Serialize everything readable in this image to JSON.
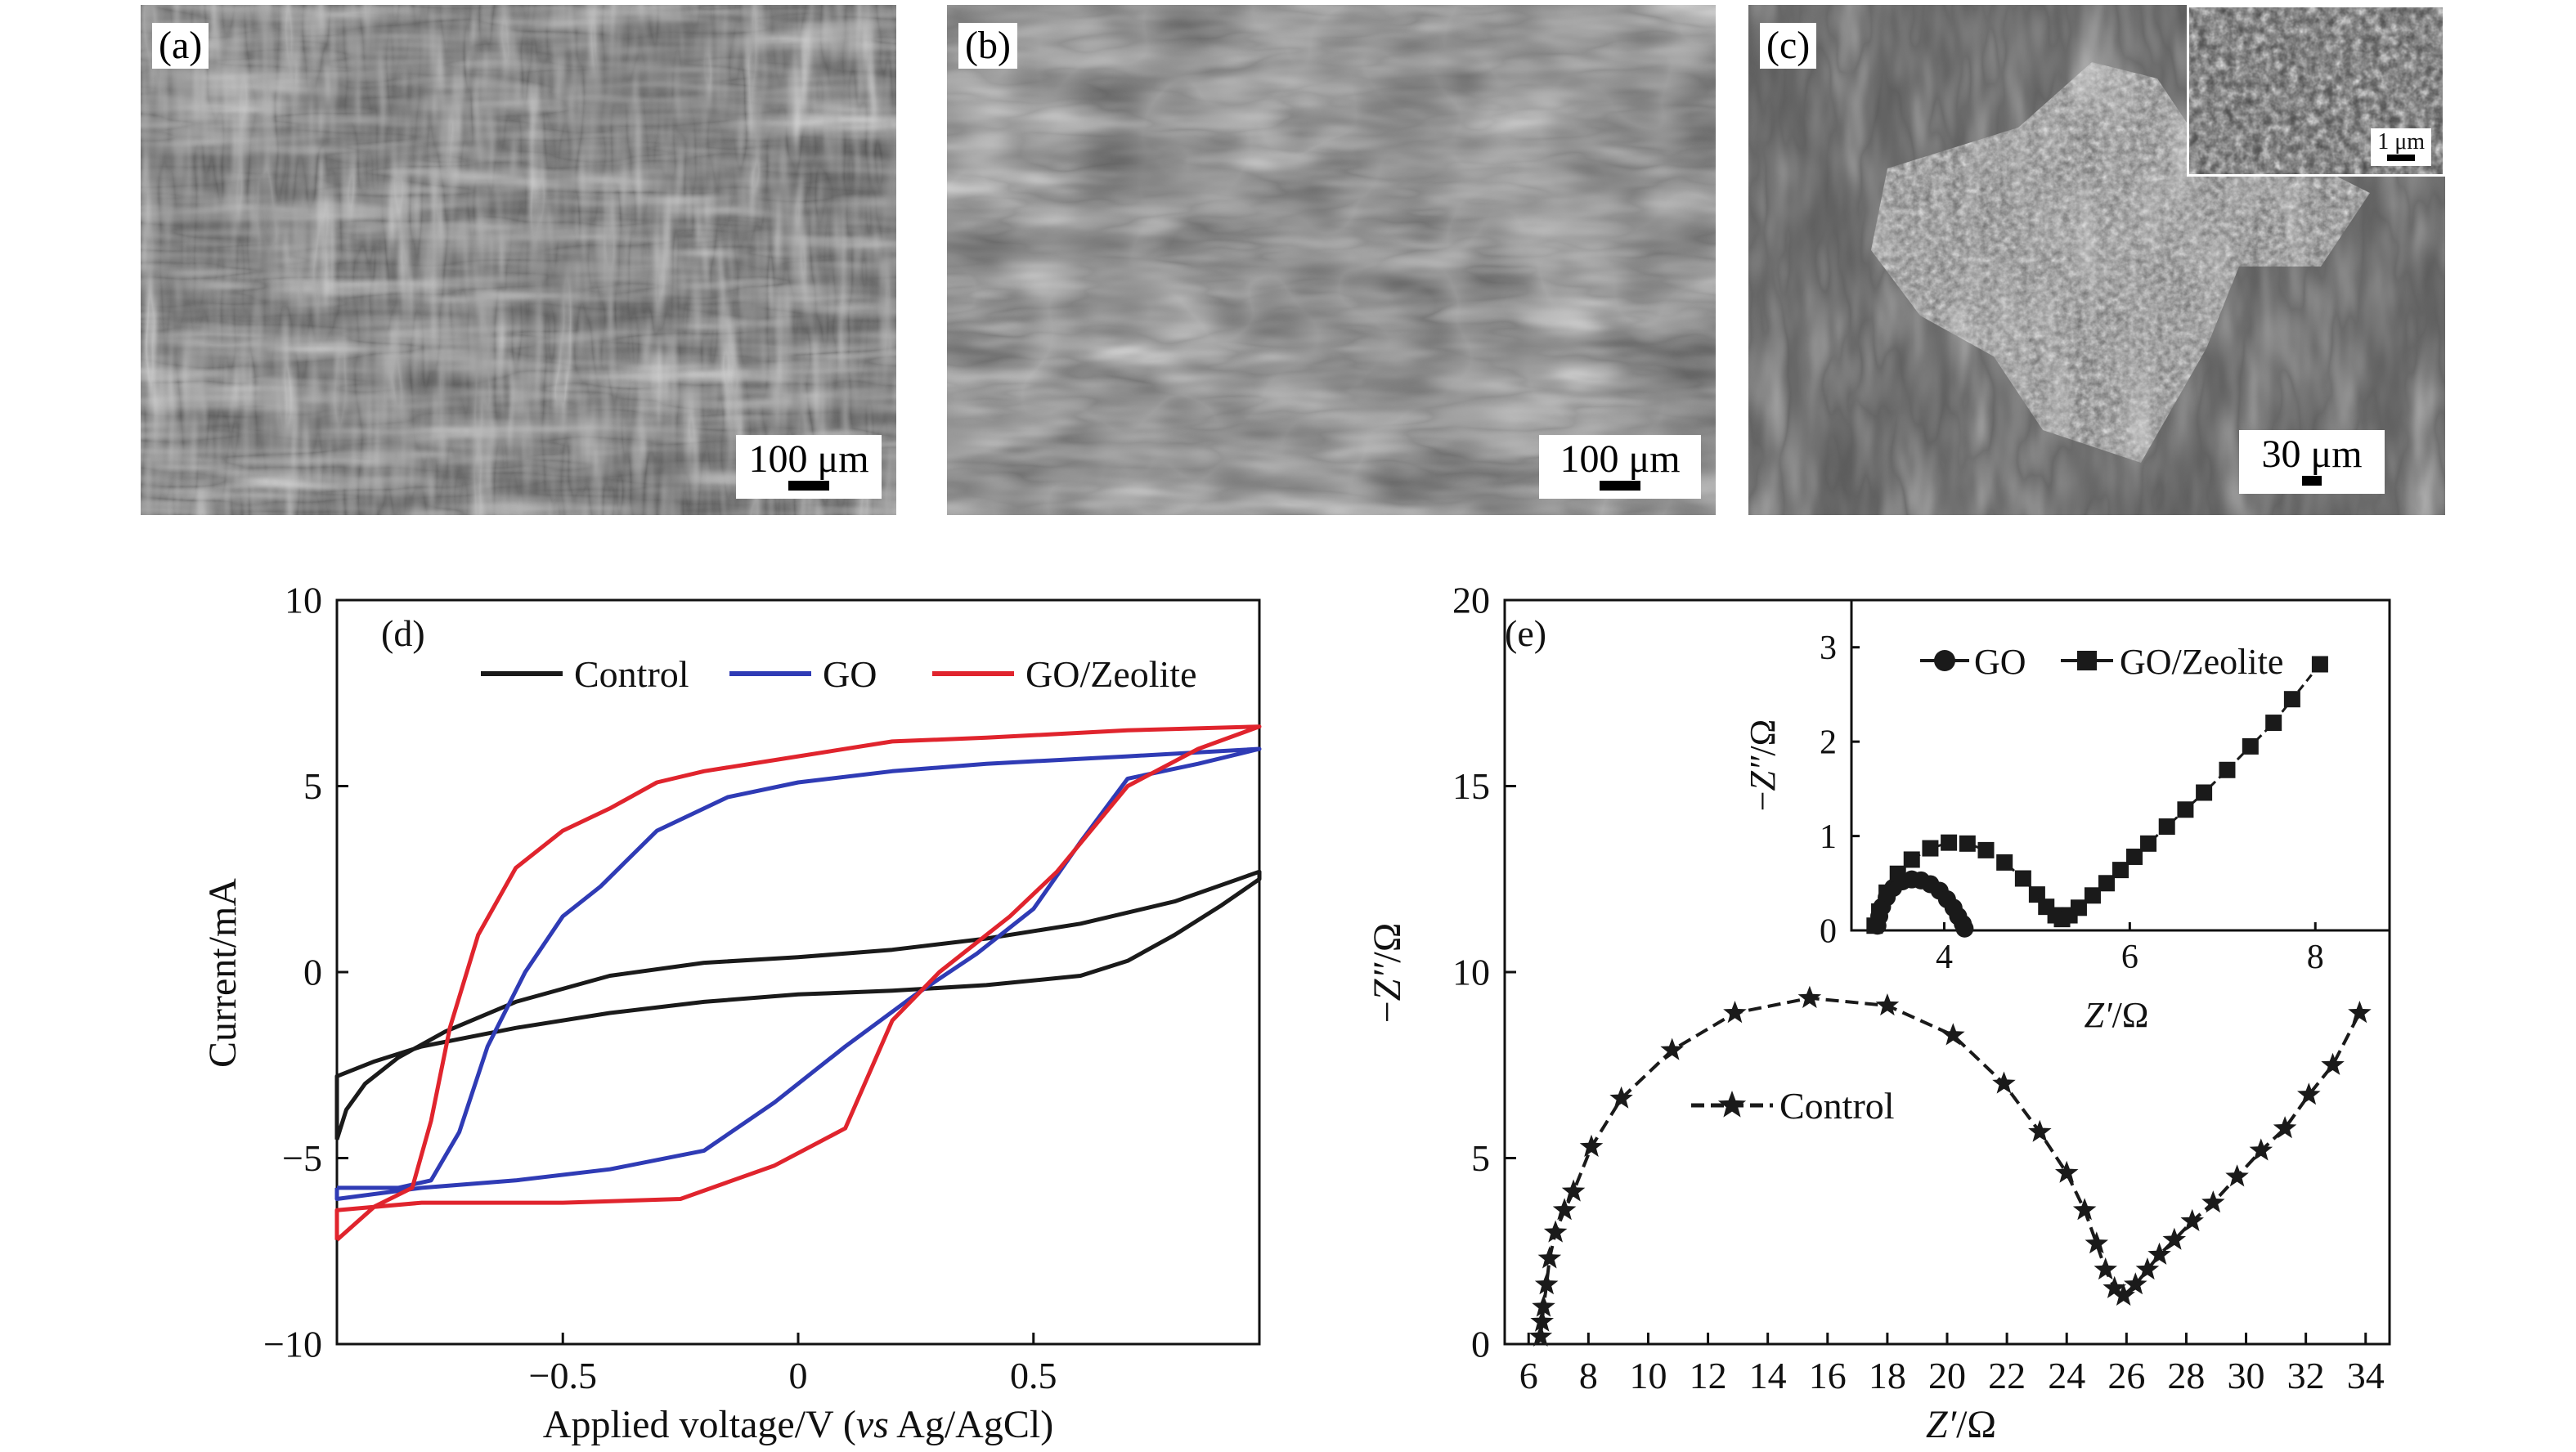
{
  "sem_panels": [
    {
      "tag": "(a)",
      "scale_label": "100 μm",
      "texture": "sem-fibers-sparse"
    },
    {
      "tag": "(b)",
      "scale_label": "100 μm",
      "texture": "sem-fibers-flakes"
    },
    {
      "tag": "(c)",
      "scale_label": "30 μm",
      "texture": "sem-fibers-particle",
      "inset": {
        "scale_label": "1 μm",
        "texture": "sem-nanoparticles"
      }
    }
  ],
  "chart_data": [
    {
      "type": "line",
      "tag": "(d)",
      "xlabel_prefix": "Applied voltage/V (",
      "xlabel_italic": "vs",
      "xlabel_suffix": " Ag/AgCl)",
      "ylabel": "Current/mA",
      "xlim": [
        -0.98,
        0.98
      ],
      "ylim": [
        -10,
        10
      ],
      "xticks": [
        -0.5,
        0,
        0.5
      ],
      "xtick_labels": [
        "−0.5",
        "0",
        "0.5"
      ],
      "yticks": [
        -10,
        -5,
        0,
        5,
        10
      ],
      "ytick_labels": [
        "−10",
        "−5",
        "0",
        "5",
        "10"
      ],
      "grid": false,
      "legend_position": "top",
      "series": [
        {
          "name": "Control",
          "color": "#1a1a1a",
          "points": [
            [
              -0.98,
              -4.5
            ],
            [
              -0.96,
              -3.7
            ],
            [
              -0.92,
              -3.0
            ],
            [
              -0.85,
              -2.3
            ],
            [
              -0.75,
              -1.6
            ],
            [
              -0.6,
              -0.8
            ],
            [
              -0.4,
              -0.1
            ],
            [
              -0.2,
              0.25
            ],
            [
              0,
              0.4
            ],
            [
              0.2,
              0.6
            ],
            [
              0.4,
              0.9
            ],
            [
              0.6,
              1.3
            ],
            [
              0.8,
              1.9
            ],
            [
              0.98,
              2.7
            ],
            [
              0.98,
              2.5
            ],
            [
              0.9,
              1.8
            ],
            [
              0.8,
              1.0
            ],
            [
              0.7,
              0.3
            ],
            [
              0.6,
              -0.1
            ],
            [
              0.4,
              -0.35
            ],
            [
              0.2,
              -0.5
            ],
            [
              0,
              -0.6
            ],
            [
              -0.2,
              -0.8
            ],
            [
              -0.4,
              -1.1
            ],
            [
              -0.6,
              -1.5
            ],
            [
              -0.8,
              -2.0
            ],
            [
              -0.9,
              -2.4
            ],
            [
              -0.98,
              -2.8
            ]
          ]
        },
        {
          "name": "GO",
          "color": "#2f3bb5",
          "points": [
            [
              -0.98,
              -5.8
            ],
            [
              -0.85,
              -5.8
            ],
            [
              -0.78,
              -5.6
            ],
            [
              -0.72,
              -4.3
            ],
            [
              -0.66,
              -2.0
            ],
            [
              -0.58,
              0.0
            ],
            [
              -0.5,
              1.5
            ],
            [
              -0.42,
              2.3
            ],
            [
              -0.3,
              3.8
            ],
            [
              -0.15,
              4.7
            ],
            [
              0,
              5.1
            ],
            [
              0.2,
              5.4
            ],
            [
              0.4,
              5.6
            ],
            [
              0.7,
              5.8
            ],
            [
              0.98,
              6.0
            ],
            [
              0.85,
              5.6
            ],
            [
              0.7,
              5.2
            ],
            [
              0.6,
              3.5
            ],
            [
              0.5,
              1.7
            ],
            [
              0.38,
              0.5
            ],
            [
              0.25,
              -0.6
            ],
            [
              0.1,
              -2.0
            ],
            [
              -0.05,
              -3.5
            ],
            [
              -0.2,
              -4.8
            ],
            [
              -0.4,
              -5.3
            ],
            [
              -0.6,
              -5.6
            ],
            [
              -0.8,
              -5.8
            ],
            [
              -0.98,
              -6.1
            ]
          ]
        },
        {
          "name": "GO/Zeolite",
          "color": "#e0242d",
          "points": [
            [
              -0.98,
              -7.2
            ],
            [
              -0.9,
              -6.3
            ],
            [
              -0.82,
              -5.8
            ],
            [
              -0.78,
              -4.0
            ],
            [
              -0.74,
              -1.5
            ],
            [
              -0.68,
              1.0
            ],
            [
              -0.6,
              2.8
            ],
            [
              -0.5,
              3.8
            ],
            [
              -0.4,
              4.4
            ],
            [
              -0.3,
              5.1
            ],
            [
              -0.2,
              5.4
            ],
            [
              0,
              5.8
            ],
            [
              0.2,
              6.2
            ],
            [
              0.4,
              6.3
            ],
            [
              0.7,
              6.5
            ],
            [
              0.98,
              6.6
            ],
            [
              0.85,
              6.0
            ],
            [
              0.7,
              5.0
            ],
            [
              0.55,
              2.7
            ],
            [
              0.45,
              1.5
            ],
            [
              0.3,
              0.0
            ],
            [
              0.2,
              -1.3
            ],
            [
              0.1,
              -4.2
            ],
            [
              -0.05,
              -5.2
            ],
            [
              -0.25,
              -6.1
            ],
            [
              -0.5,
              -6.2
            ],
            [
              -0.8,
              -6.2
            ],
            [
              -0.98,
              -6.4
            ]
          ]
        }
      ]
    },
    {
      "type": "scatter",
      "tag": "(e)",
      "xlabel_italic": "Z′",
      "xlabel_suffix": "/Ω",
      "ylabel_prefix": "−",
      "ylabel_italic": "Z″",
      "ylabel_suffix": "/Ω",
      "xlim": [
        5.2,
        34.8
      ],
      "ylim": [
        0,
        20
      ],
      "xticks": [
        6,
        8,
        10,
        12,
        14,
        16,
        18,
        20,
        22,
        24,
        26,
        28,
        30,
        32,
        34
      ],
      "yticks": [
        0,
        5,
        10,
        15,
        20
      ],
      "grid": false,
      "legend_position": "middle-left",
      "series": [
        {
          "name": "Control",
          "marker": "star",
          "color": "#1a1a1a",
          "points": [
            [
              6.4,
              0.2
            ],
            [
              6.45,
              0.6
            ],
            [
              6.5,
              1.0
            ],
            [
              6.6,
              1.6
            ],
            [
              6.7,
              2.3
            ],
            [
              6.9,
              3.0
            ],
            [
              7.2,
              3.6
            ],
            [
              7.5,
              4.1
            ],
            [
              8.1,
              5.3
            ],
            [
              9.1,
              6.6
            ],
            [
              10.8,
              7.9
            ],
            [
              12.9,
              8.9
            ],
            [
              15.4,
              9.3
            ],
            [
              18.0,
              9.1
            ],
            [
              20.2,
              8.3
            ],
            [
              21.9,
              7.0
            ],
            [
              23.1,
              5.7
            ],
            [
              24.0,
              4.6
            ],
            [
              24.6,
              3.6
            ],
            [
              25.0,
              2.7
            ],
            [
              25.3,
              2.0
            ],
            [
              25.6,
              1.5
            ],
            [
              25.9,
              1.3
            ],
            [
              26.3,
              1.6
            ],
            [
              26.7,
              2.0
            ],
            [
              27.1,
              2.4
            ],
            [
              27.6,
              2.8
            ],
            [
              28.2,
              3.3
            ],
            [
              28.9,
              3.8
            ],
            [
              29.7,
              4.5
            ],
            [
              30.5,
              5.2
            ],
            [
              31.3,
              5.8
            ],
            [
              32.1,
              6.7
            ],
            [
              32.9,
              7.5
            ],
            [
              33.8,
              8.9
            ]
          ]
        }
      ]
    },
    {
      "type": "scatter",
      "tag": "",
      "xlabel_italic": "Z′",
      "xlabel_suffix": "/Ω",
      "ylabel_prefix": "−",
      "ylabel_italic": "Z″",
      "ylabel_suffix": "/Ω",
      "xlim": [
        3,
        8.8
      ],
      "ylim": [
        0,
        3.5
      ],
      "xticks": [
        4,
        6,
        8
      ],
      "yticks": [
        0,
        1,
        2,
        3
      ],
      "grid": false,
      "legend_position": "top",
      "series": [
        {
          "name": "GO",
          "marker": "circle",
          "color": "#1a1a1a",
          "points": [
            [
              3.28,
              0.05
            ],
            [
              3.3,
              0.15
            ],
            [
              3.33,
              0.25
            ],
            [
              3.38,
              0.35
            ],
            [
              3.45,
              0.45
            ],
            [
              3.55,
              0.52
            ],
            [
              3.65,
              0.54
            ],
            [
              3.75,
              0.53
            ],
            [
              3.85,
              0.49
            ],
            [
              3.95,
              0.42
            ],
            [
              4.03,
              0.33
            ],
            [
              4.1,
              0.24
            ],
            [
              4.15,
              0.15
            ],
            [
              4.2,
              0.07
            ],
            [
              4.22,
              0.02
            ]
          ]
        },
        {
          "name": "GO/Zeolite",
          "marker": "square",
          "color": "#1a1a1a",
          "points": [
            [
              3.25,
              0.05
            ],
            [
              3.3,
              0.2
            ],
            [
              3.38,
              0.4
            ],
            [
              3.5,
              0.6
            ],
            [
              3.65,
              0.75
            ],
            [
              3.85,
              0.87
            ],
            [
              4.05,
              0.93
            ],
            [
              4.25,
              0.92
            ],
            [
              4.45,
              0.85
            ],
            [
              4.65,
              0.72
            ],
            [
              4.85,
              0.55
            ],
            [
              5.0,
              0.38
            ],
            [
              5.1,
              0.25
            ],
            [
              5.2,
              0.16
            ],
            [
              5.27,
              0.12
            ],
            [
              5.35,
              0.16
            ],
            [
              5.45,
              0.24
            ],
            [
              5.6,
              0.37
            ],
            [
              5.75,
              0.5
            ],
            [
              5.9,
              0.64
            ],
            [
              6.05,
              0.78
            ],
            [
              6.2,
              0.92
            ],
            [
              6.4,
              1.1
            ],
            [
              6.6,
              1.28
            ],
            [
              6.8,
              1.46
            ],
            [
              7.05,
              1.7
            ],
            [
              7.3,
              1.95
            ],
            [
              7.55,
              2.2
            ],
            [
              7.75,
              2.45
            ],
            [
              8.05,
              2.82
            ]
          ]
        }
      ]
    }
  ]
}
